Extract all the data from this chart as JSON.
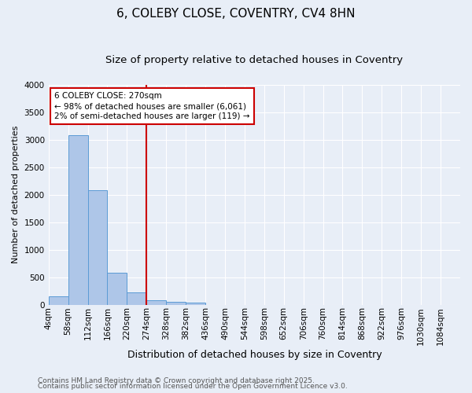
{
  "title1": "6, COLEBY CLOSE, COVENTRY, CV4 8HN",
  "title2": "Size of property relative to detached houses in Coventry",
  "xlabel": "Distribution of detached houses by size in Coventry",
  "ylabel": "Number of detached properties",
  "bin_labels": [
    "4sqm",
    "58sqm",
    "112sqm",
    "166sqm",
    "220sqm",
    "274sqm",
    "328sqm",
    "382sqm",
    "436sqm",
    "490sqm",
    "544sqm",
    "598sqm",
    "652sqm",
    "706sqm",
    "760sqm",
    "814sqm",
    "868sqm",
    "922sqm",
    "976sqm",
    "1030sqm",
    "1084sqm"
  ],
  "bar_values": [
    150,
    3080,
    2080,
    580,
    220,
    80,
    50,
    30,
    0,
    0,
    0,
    0,
    0,
    0,
    0,
    0,
    0,
    0,
    0,
    0,
    0
  ],
  "bar_color": "#aec6e8",
  "bar_edge_color": "#5b9bd5",
  "red_line_x": 5,
  "ylim": [
    0,
    4000
  ],
  "annotation_text": "6 COLEBY CLOSE: 270sqm\n← 98% of detached houses are smaller (6,061)\n2% of semi-detached houses are larger (119) →",
  "annotation_box_color": "#ffffff",
  "annotation_box_edge_color": "#cc0000",
  "footnote1": "Contains HM Land Registry data © Crown copyright and database right 2025.",
  "footnote2": "Contains public sector information licensed under the Open Government Licence v3.0.",
  "background_color": "#e8eef7",
  "grid_color": "#ffffff",
  "title1_fontsize": 11,
  "title2_fontsize": 9.5,
  "xlabel_fontsize": 9,
  "ylabel_fontsize": 8,
  "tick_fontsize": 7.5,
  "footnote_fontsize": 6.5,
  "annotation_fontsize": 7.5
}
